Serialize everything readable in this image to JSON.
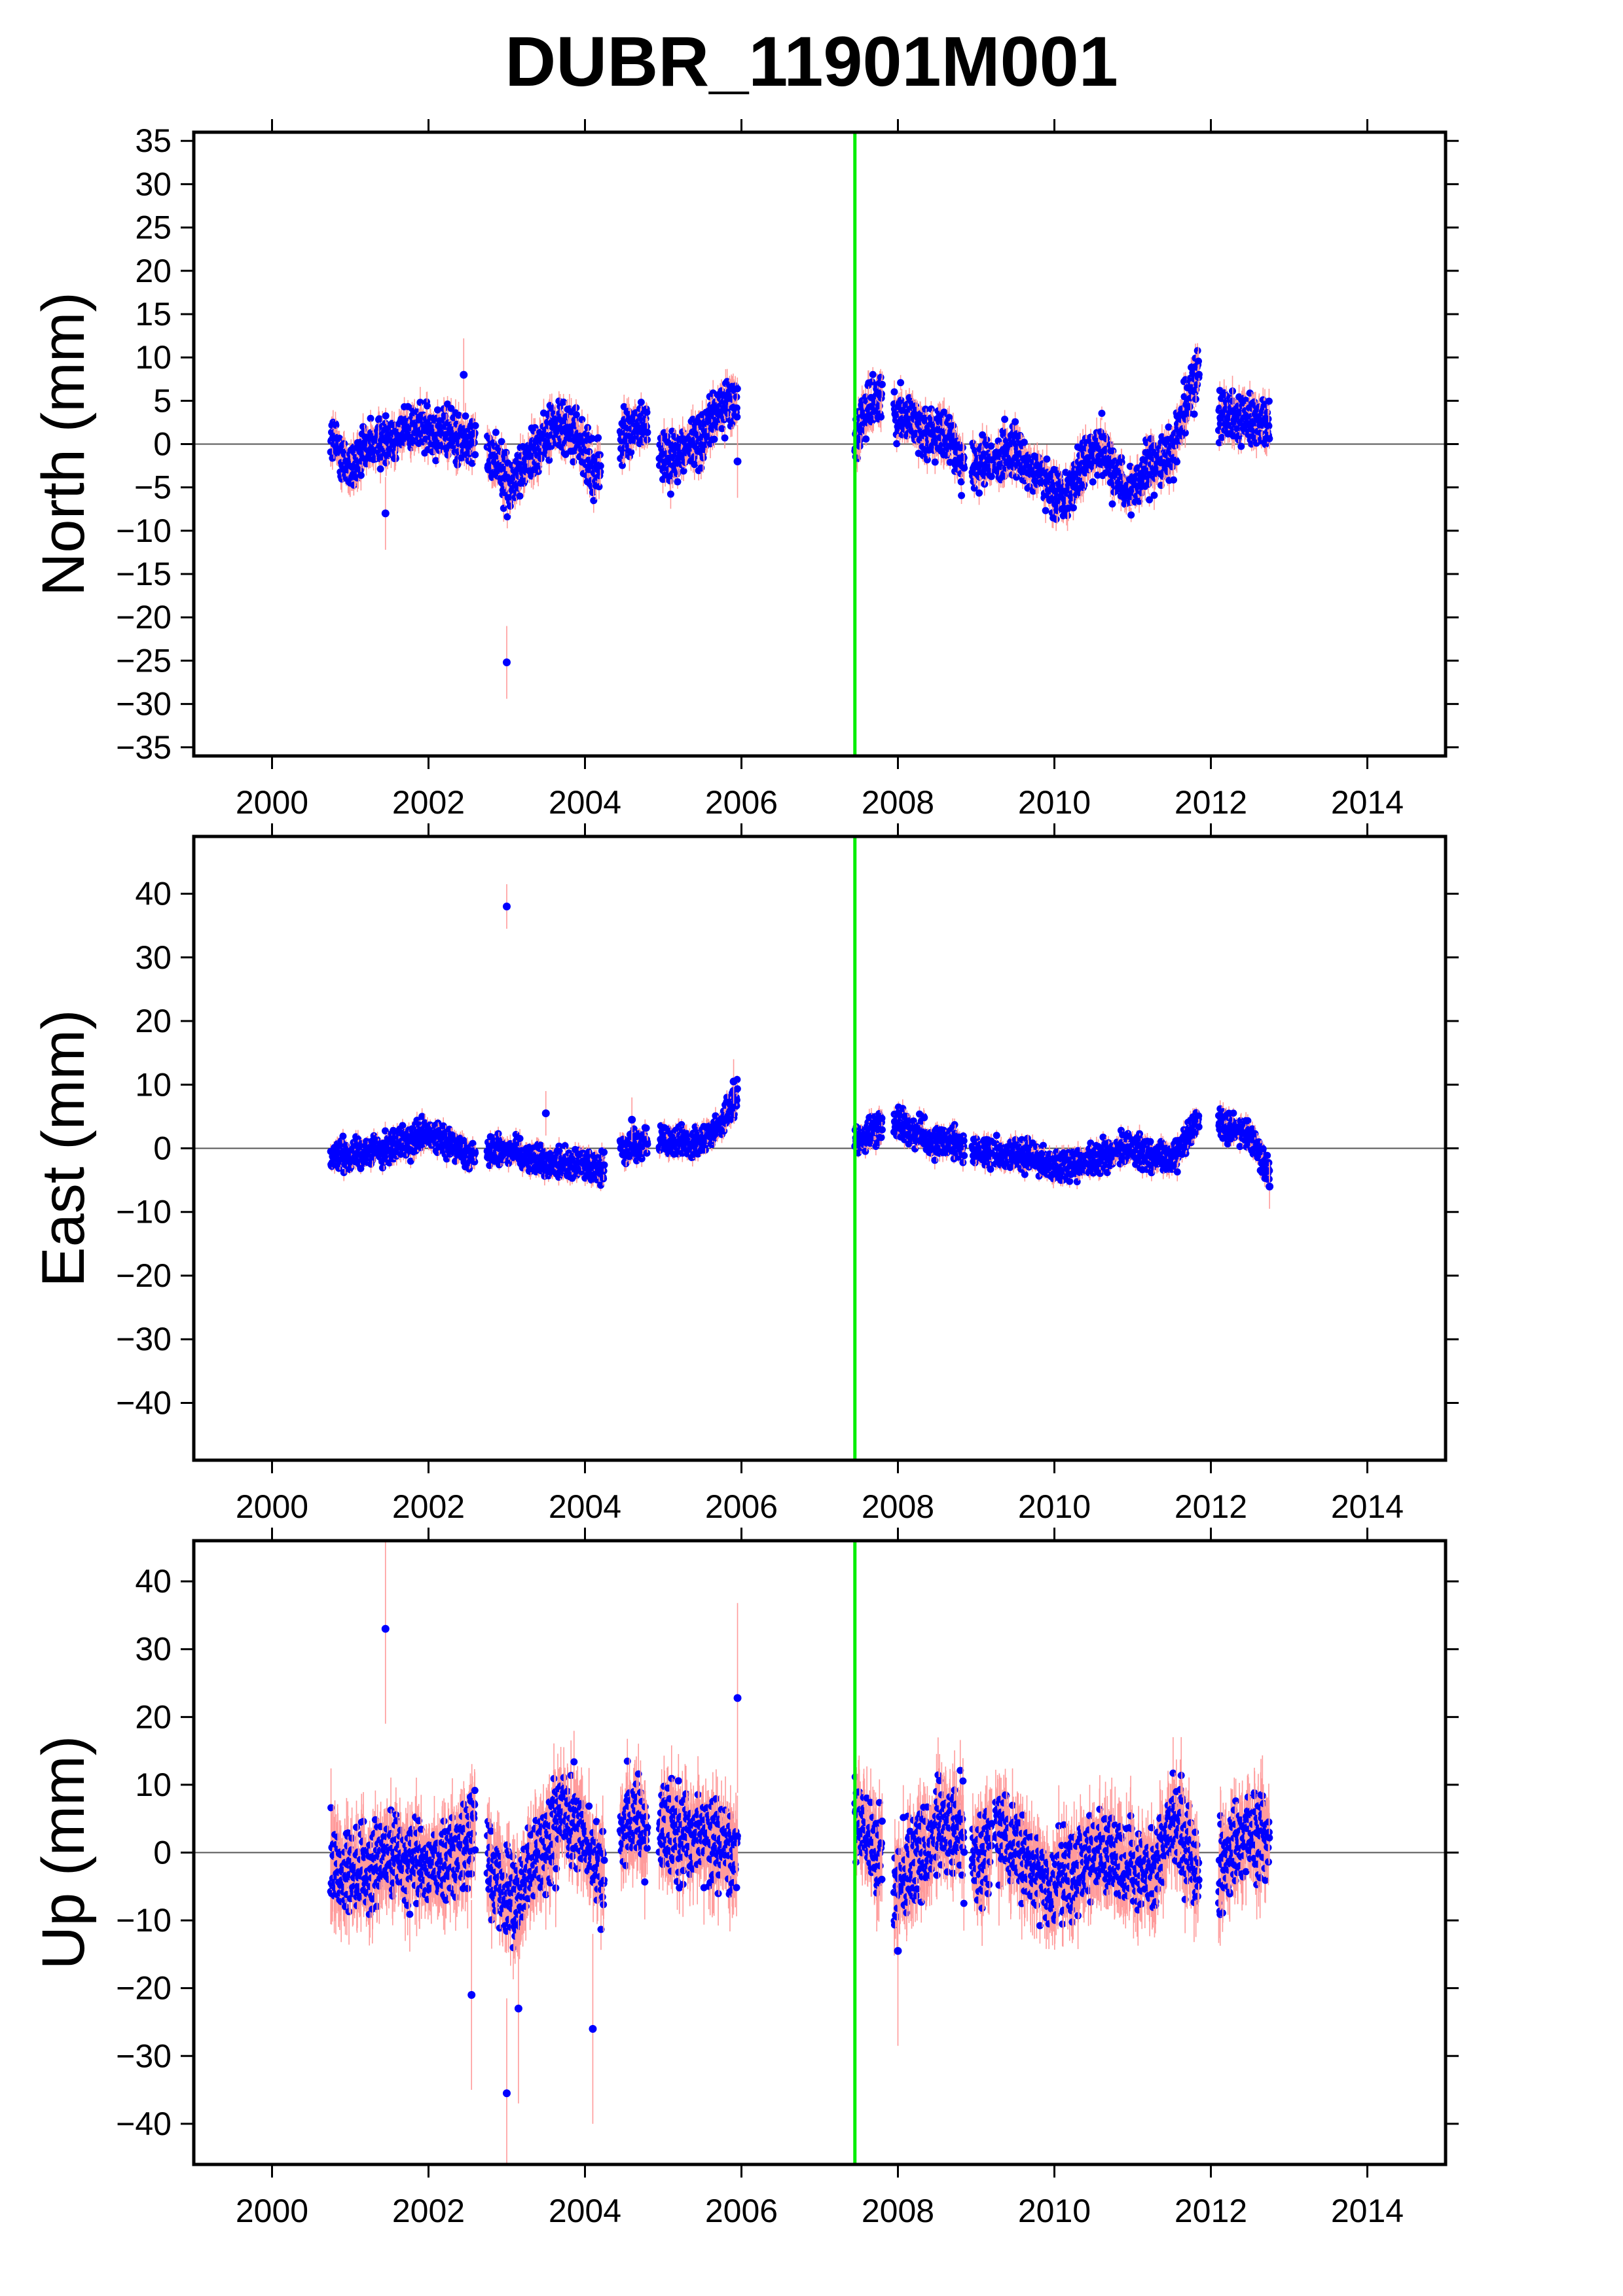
{
  "title": "DUBR_11901M001",
  "colors": {
    "points": "#0000ff",
    "error_bars": "#ff9a9a",
    "event_line": "#00ee00",
    "zero_line": "#555555",
    "frame": "#000000"
  },
  "chart_data": [
    {
      "type": "scatter",
      "component": "north",
      "ylabel": "North (mm)",
      "xlim": [
        1999,
        2015
      ],
      "ylim": [
        -36,
        36
      ],
      "xticks": [
        2000,
        2002,
        2004,
        2006,
        2008,
        2010,
        2012,
        2014
      ],
      "yticks": [
        -35,
        -30,
        -25,
        -20,
        -15,
        -10,
        -5,
        0,
        5,
        10,
        15,
        20,
        25,
        30,
        35
      ],
      "event_line_x": 2007.45,
      "zero_line": true,
      "grid": false,
      "series": [
        {
          "segments": [
            [
              2000.75,
              2001.4
            ],
            [
              2001.4,
              2002.6
            ],
            [
              2002.75,
              2003.3
            ],
            [
              2003.3,
              2003.95
            ],
            [
              2003.95,
              2004.2
            ],
            [
              2004.45,
              2004.8
            ],
            [
              2004.95,
              2005.4
            ],
            [
              2005.4,
              2005.95
            ],
            [
              2007.45,
              2007.8
            ],
            [
              2007.95,
              2008.85
            ],
            [
              2008.95,
              2009.2
            ],
            [
              2009.25,
              2009.75
            ],
            [
              2009.75,
              2010.2
            ],
            [
              2010.2,
              2010.9
            ],
            [
              2010.9,
              2011.5
            ],
            [
              2011.5,
              2011.85
            ],
            [
              2012.1,
              2012.75
            ]
          ],
          "trend": [
            [
              2000.75,
              1
            ],
            [
              2001.0,
              -3
            ],
            [
              2001.3,
              0
            ],
            [
              2001.8,
              2
            ],
            [
              2002.3,
              1
            ],
            [
              2002.6,
              0
            ],
            [
              2002.9,
              -2
            ],
            [
              2003.05,
              -5
            ],
            [
              2003.3,
              -1
            ],
            [
              2003.6,
              2
            ],
            [
              2003.9,
              1
            ],
            [
              2004.1,
              -3
            ],
            [
              2004.2,
              -2
            ],
            [
              2004.5,
              1
            ],
            [
              2004.8,
              2
            ],
            [
              2005.0,
              -2
            ],
            [
              2005.2,
              -1
            ],
            [
              2005.5,
              1
            ],
            [
              2005.8,
              5
            ],
            [
              2005.95,
              5
            ],
            [
              2007.45,
              0
            ],
            [
              2007.6,
              4
            ],
            [
              2007.8,
              5.5
            ],
            [
              2007.95,
              4
            ],
            [
              2008.3,
              2
            ],
            [
              2008.7,
              0
            ],
            [
              2008.9,
              -3
            ],
            [
              2009.2,
              -2
            ],
            [
              2009.5,
              -1
            ],
            [
              2009.75,
              -3
            ],
            [
              2010.0,
              -6
            ],
            [
              2010.2,
              -5
            ],
            [
              2010.5,
              -1
            ],
            [
              2010.6,
              0
            ],
            [
              2010.9,
              -6
            ],
            [
              2011.2,
              -3
            ],
            [
              2011.5,
              -1
            ],
            [
              2011.85,
              9
            ],
            [
              2012.1,
              4
            ],
            [
              2012.75,
              2
            ]
          ],
          "spread": 2.0,
          "sigma": 1.2,
          "outliers": [
            [
              2001.45,
              -8
            ],
            [
              2002.45,
              8
            ],
            [
              2003.0,
              -25.2
            ],
            [
              2005.95,
              -2
            ]
          ]
        }
      ]
    },
    {
      "type": "scatter",
      "component": "east",
      "ylabel": "East (mm)",
      "xlim": [
        1999,
        2015
      ],
      "ylim": [
        -49,
        49
      ],
      "xticks": [
        2000,
        2002,
        2004,
        2006,
        2008,
        2010,
        2012,
        2014
      ],
      "yticks": [
        -40,
        -30,
        -20,
        -10,
        0,
        10,
        20,
        30,
        40
      ],
      "event_line_x": 2007.45,
      "zero_line": true,
      "grid": false,
      "series": [
        {
          "segments": [
            [
              2000.75,
              2001.5
            ],
            [
              2001.5,
              2002.6
            ],
            [
              2002.75,
              2003.4
            ],
            [
              2003.4,
              2004.25
            ],
            [
              2004.45,
              2004.8
            ],
            [
              2004.95,
              2005.5
            ],
            [
              2005.5,
              2005.95
            ],
            [
              2007.45,
              2007.8
            ],
            [
              2007.95,
              2008.85
            ],
            [
              2008.95,
              2009.2
            ],
            [
              2009.25,
              2009.75
            ],
            [
              2009.75,
              2010.5
            ],
            [
              2010.5,
              2011.0
            ],
            [
              2011.0,
              2011.85
            ],
            [
              2012.1,
              2012.75
            ]
          ],
          "trend": [
            [
              2000.75,
              -1
            ],
            [
              2001.5,
              0
            ],
            [
              2002.0,
              2
            ],
            [
              2002.6,
              -1
            ],
            [
              2003.0,
              0
            ],
            [
              2003.5,
              -2
            ],
            [
              2004.2,
              -3
            ],
            [
              2004.5,
              0
            ],
            [
              2004.8,
              1
            ],
            [
              2005.0,
              1
            ],
            [
              2005.4,
              1
            ],
            [
              2005.7,
              3
            ],
            [
              2005.95,
              8
            ],
            [
              2007.45,
              1
            ],
            [
              2007.6,
              2
            ],
            [
              2007.8,
              4
            ],
            [
              2008.0,
              4
            ],
            [
              2008.5,
              1
            ],
            [
              2008.9,
              0
            ],
            [
              2009.2,
              -1
            ],
            [
              2009.7,
              -1
            ],
            [
              2010.0,
              -3
            ],
            [
              2010.5,
              -2
            ],
            [
              2010.9,
              0
            ],
            [
              2011.5,
              -2
            ],
            [
              2011.85,
              5
            ],
            [
              2012.1,
              4
            ],
            [
              2012.5,
              2
            ],
            [
              2012.75,
              -4
            ]
          ],
          "spread": 1.6,
          "sigma": 1.0,
          "outliers": [
            [
              2003.0,
              38
            ],
            [
              2003.5,
              5.5
            ],
            [
              2004.6,
              4.5
            ],
            [
              2005.9,
              10.5
            ],
            [
              2012.75,
              -6
            ]
          ]
        }
      ]
    },
    {
      "type": "scatter",
      "component": "up",
      "ylabel": "Up (mm)",
      "xlim": [
        1999,
        2015
      ],
      "ylim": [
        -46,
        46
      ],
      "xticks": [
        2000,
        2002,
        2004,
        2006,
        2008,
        2010,
        2012,
        2014
      ],
      "yticks": [
        -40,
        -30,
        -20,
        -10,
        0,
        10,
        20,
        30,
        40
      ],
      "event_line_x": 2007.45,
      "zero_line": true,
      "grid": false,
      "series": [
        {
          "segments": [
            [
              2000.75,
              2001.5
            ],
            [
              2001.5,
              2002.6
            ],
            [
              2002.75,
              2003.4
            ],
            [
              2003.4,
              2004.25
            ],
            [
              2004.45,
              2004.8
            ],
            [
              2004.95,
              2005.6
            ],
            [
              2005.6,
              2005.95
            ],
            [
              2007.45,
              2007.8
            ],
            [
              2007.95,
              2008.85
            ],
            [
              2008.95,
              2009.2
            ],
            [
              2009.25,
              2009.75
            ],
            [
              2009.75,
              2010.5
            ],
            [
              2010.5,
              2011.0
            ],
            [
              2011.0,
              2011.85
            ],
            [
              2012.1,
              2012.75
            ]
          ],
          "trend": [
            [
              2000.75,
              -2
            ],
            [
              2001.2,
              -3
            ],
            [
              2001.5,
              0
            ],
            [
              2002.0,
              -2
            ],
            [
              2002.4,
              0
            ],
            [
              2002.6,
              5
            ],
            [
              2002.8,
              -3
            ],
            [
              2003.1,
              -8
            ],
            [
              2003.4,
              0
            ],
            [
              2003.7,
              6
            ],
            [
              2004.0,
              2
            ],
            [
              2004.2,
              -3
            ],
            [
              2004.5,
              5
            ],
            [
              2004.8,
              2
            ],
            [
              2005.0,
              3
            ],
            [
              2005.5,
              2
            ],
            [
              2005.95,
              0
            ],
            [
              2007.45,
              6
            ],
            [
              2007.7,
              0
            ],
            [
              2008.0,
              -5
            ],
            [
              2008.3,
              0
            ],
            [
              2008.6,
              5
            ],
            [
              2008.85,
              2
            ],
            [
              2009.0,
              -2
            ],
            [
              2009.3,
              3
            ],
            [
              2009.75,
              -2
            ],
            [
              2010.0,
              -5
            ],
            [
              2010.5,
              0
            ],
            [
              2010.9,
              -2
            ],
            [
              2011.3,
              -3
            ],
            [
              2011.5,
              5
            ],
            [
              2011.85,
              -3
            ],
            [
              2012.1,
              -2
            ],
            [
              2012.5,
              3
            ],
            [
              2012.75,
              2
            ]
          ],
          "spread": 4.5,
          "sigma": 4.0,
          "outliers": [
            [
              2001.45,
              33
            ],
            [
              2003.0,
              -35.5
            ],
            [
              2004.1,
              -26
            ],
            [
              2005.95,
              22.8
            ],
            [
              2002.55,
              -21
            ],
            [
              2008.0,
              -14.5
            ],
            [
              2003.15,
              -23
            ]
          ]
        }
      ]
    }
  ]
}
